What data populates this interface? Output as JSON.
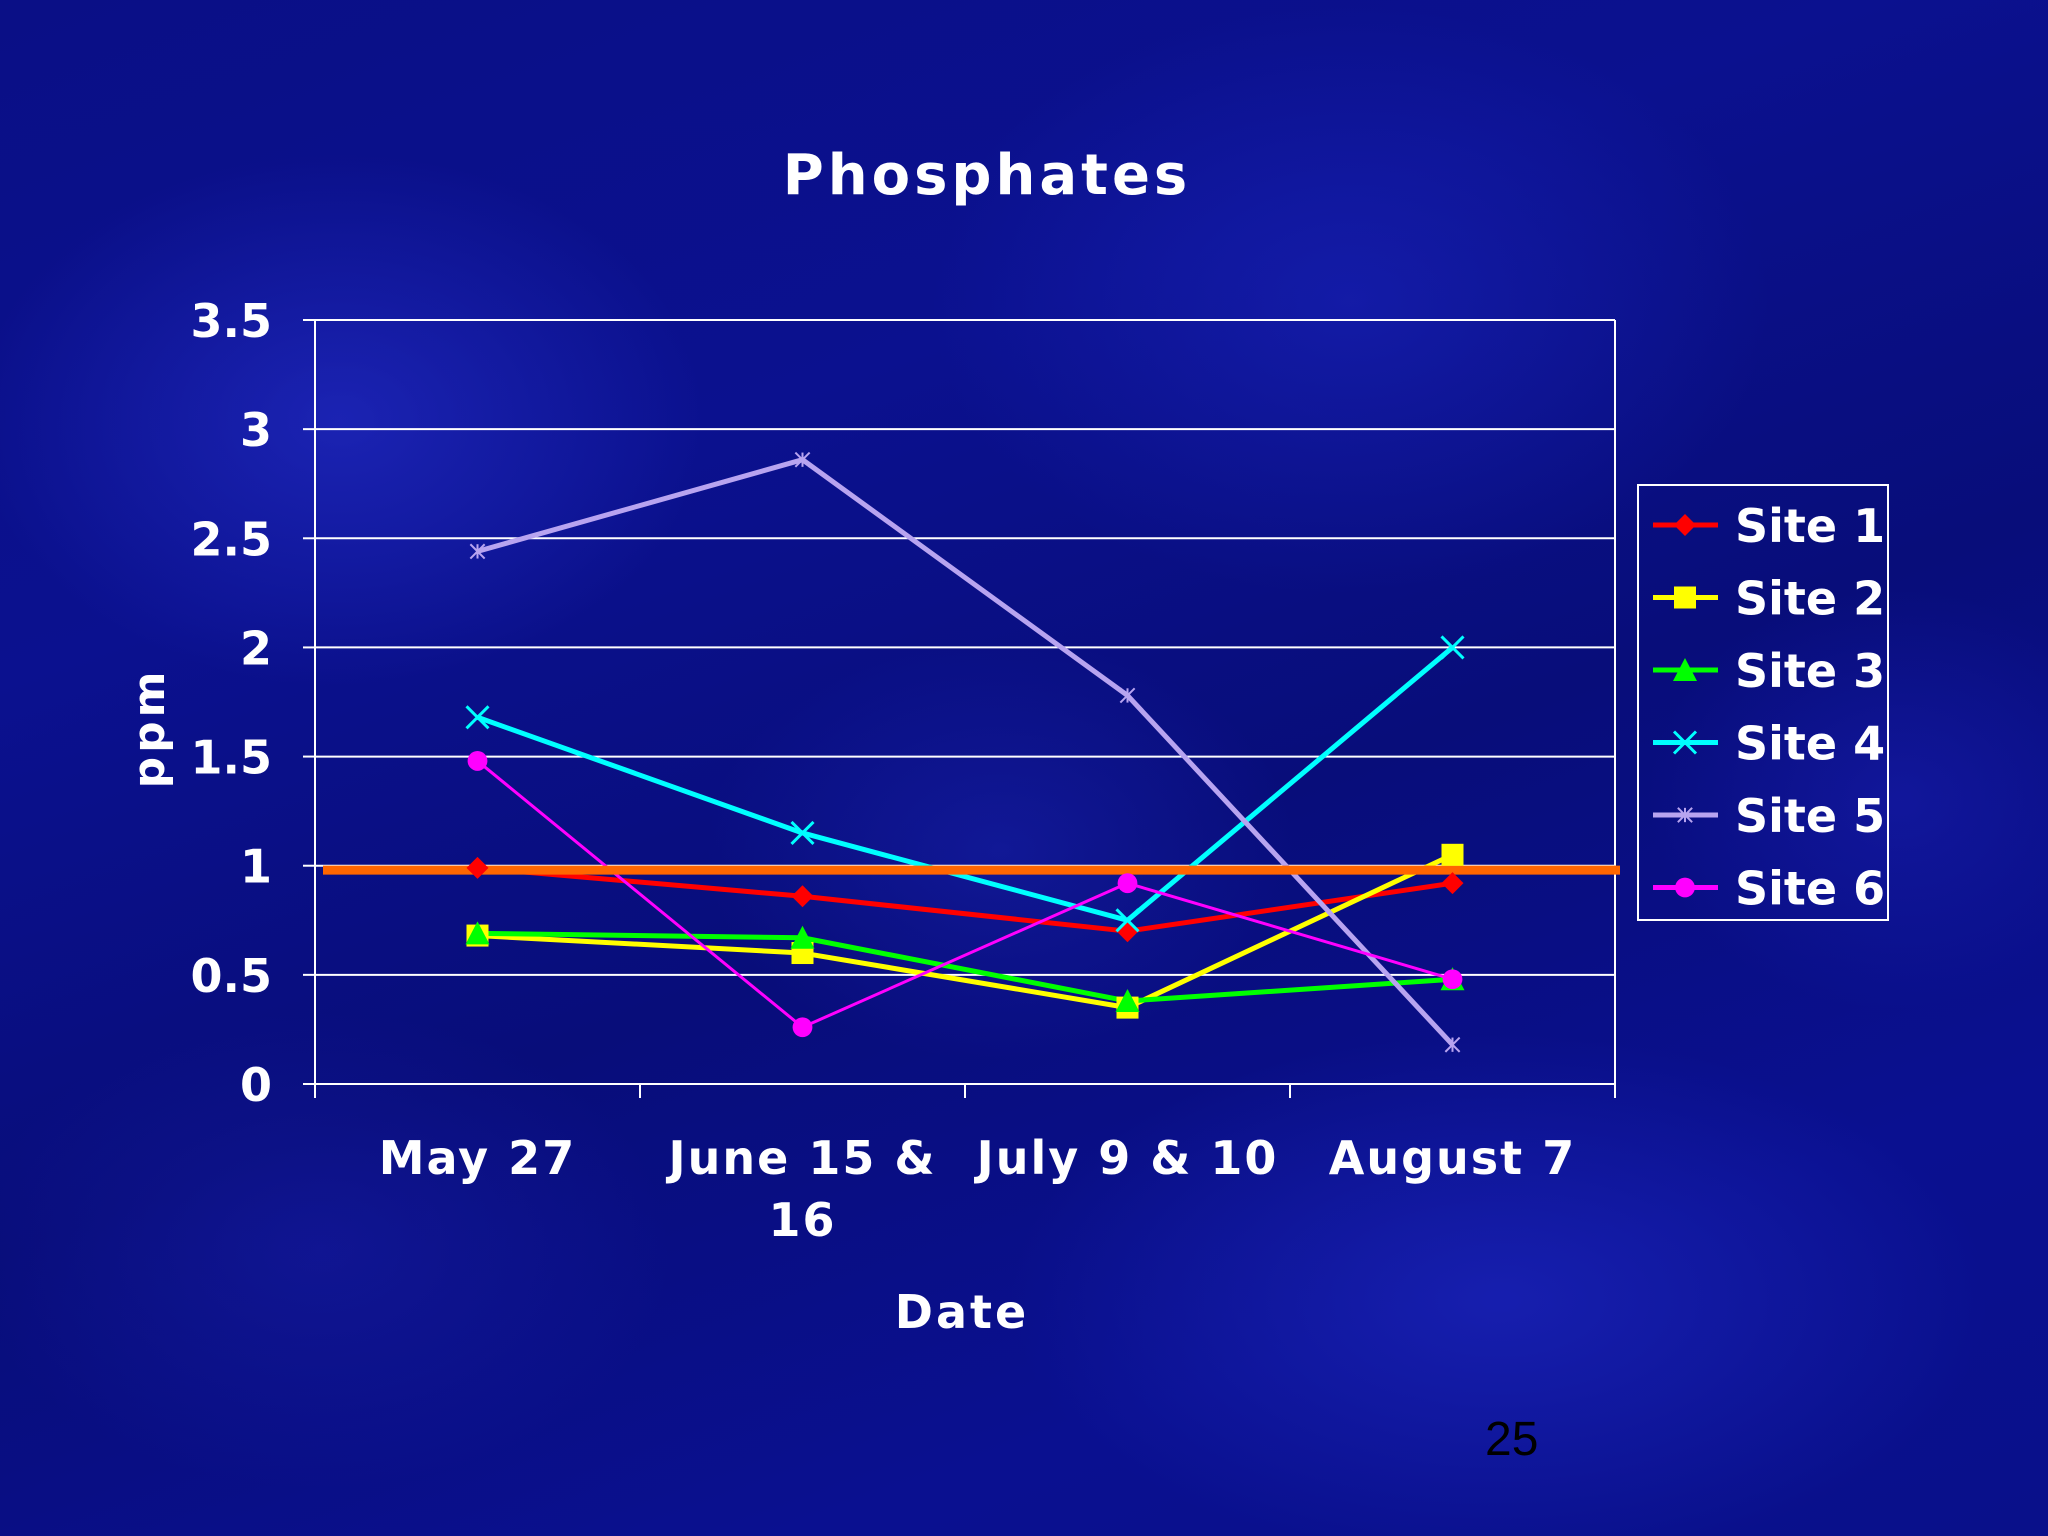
{
  "slide": {
    "page_number": "25"
  },
  "chart_data": {
    "type": "line",
    "title": "Phosphates",
    "xlabel": "Date",
    "ylabel": "ppm",
    "categories": [
      "May 27",
      "June 15 &\n16",
      "July 9 & 10",
      "August 7"
    ],
    "ylim": [
      0,
      3.5
    ],
    "yticks": [
      "0",
      "0.5",
      "1",
      "1.5",
      "2",
      "2.5",
      "3",
      "3.5"
    ],
    "grid": true,
    "legend_position": "right",
    "series": [
      {
        "name": "Site 1",
        "values": [
          0.99,
          0.86,
          0.7,
          0.92
        ],
        "color": "#ff0000",
        "marker": "diamond"
      },
      {
        "name": "Site 2",
        "values": [
          0.68,
          0.6,
          0.35,
          1.05
        ],
        "color": "#ffff00",
        "marker": "square"
      },
      {
        "name": "Site 3",
        "values": [
          0.69,
          0.67,
          0.38,
          0.48
        ],
        "color": "#00ff00",
        "marker": "triangle"
      },
      {
        "name": "Site 4",
        "values": [
          1.68,
          1.15,
          0.75,
          2.0
        ],
        "color": "#00ffff",
        "marker": "x"
      },
      {
        "name": "Site 5",
        "values": [
          2.44,
          2.86,
          1.78,
          0.18
        ],
        "color": "#b8a4f0",
        "marker": "star"
      },
      {
        "name": "Site 6",
        "values": [
          1.48,
          0.26,
          0.92,
          0.48
        ],
        "color": "#ff00ff",
        "marker": "circle"
      }
    ],
    "reference_line": {
      "value": 0.98,
      "color": "#ff6600"
    }
  }
}
